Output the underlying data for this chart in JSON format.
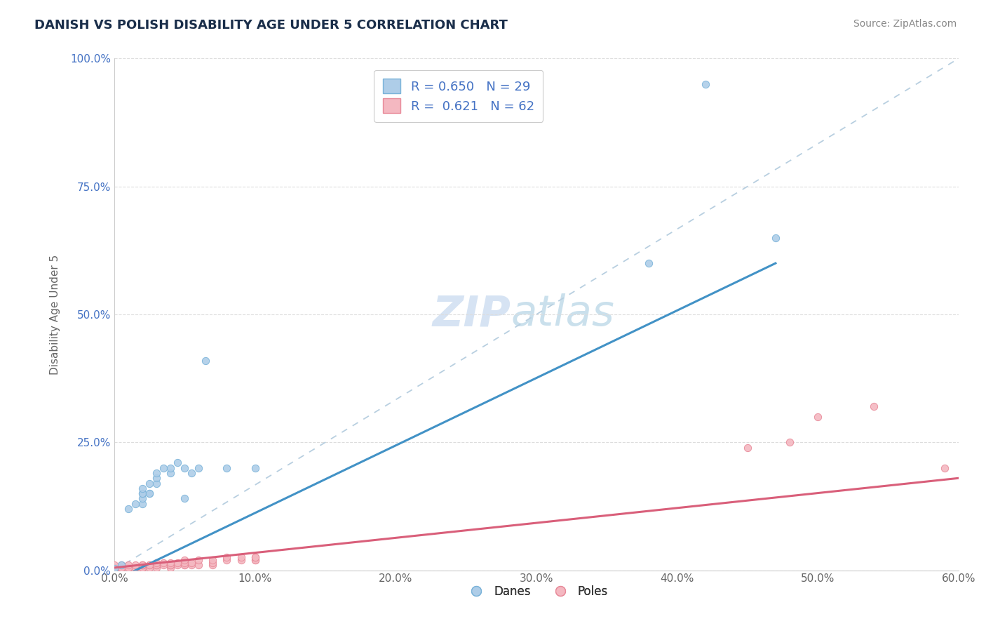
{
  "title": "DANISH VS POLISH DISABILITY AGE UNDER 5 CORRELATION CHART",
  "source": "Source: ZipAtlas.com",
  "ylabel": "Disability Age Under 5",
  "xlabel": "",
  "xlim": [
    0.0,
    0.6
  ],
  "ylim": [
    0.0,
    1.0
  ],
  "yticks": [
    0.0,
    0.25,
    0.5,
    0.75,
    1.0
  ],
  "ytick_labels": [
    "0.0%",
    "25.0%",
    "50.0%",
    "75.0%",
    "100.0%"
  ],
  "xticks": [
    0.0,
    0.1,
    0.2,
    0.3,
    0.4,
    0.5,
    0.6
  ],
  "xtick_labels": [
    "0.0%",
    "10.0%",
    "20.0%",
    "30.0%",
    "40.0%",
    "50.0%",
    "60.0%"
  ],
  "danes_scatter_color": "#aecde8",
  "poles_scatter_color": "#f4b8c1",
  "danes_edge_color": "#7ab3d9",
  "poles_edge_color": "#e88a99",
  "danes_line_color": "#4292c6",
  "poles_line_color": "#d95f7a",
  "diagonal_color": "#b8cfe0",
  "danes_R": 0.65,
  "danes_N": 29,
  "poles_R": 0.621,
  "poles_N": 62,
  "watermark": "ZIPAtlas",
  "danes_x": [
    0.0,
    0.005,
    0.01,
    0.015,
    0.02,
    0.02,
    0.02,
    0.02,
    0.02,
    0.025,
    0.025,
    0.025,
    0.03,
    0.03,
    0.03,
    0.035,
    0.04,
    0.04,
    0.045,
    0.05,
    0.05,
    0.055,
    0.06,
    0.065,
    0.08,
    0.1,
    0.38,
    0.42,
    0.47
  ],
  "danes_y": [
    0.003,
    0.01,
    0.12,
    0.13,
    0.13,
    0.14,
    0.15,
    0.15,
    0.16,
    0.15,
    0.15,
    0.17,
    0.17,
    0.18,
    0.19,
    0.2,
    0.19,
    0.2,
    0.21,
    0.14,
    0.2,
    0.19,
    0.2,
    0.41,
    0.2,
    0.2,
    0.6,
    0.95,
    0.65
  ],
  "poles_x": [
    0.0,
    0.0,
    0.0,
    0.0,
    0.0,
    0.0,
    0.005,
    0.005,
    0.005,
    0.01,
    0.01,
    0.01,
    0.01,
    0.01,
    0.015,
    0.015,
    0.02,
    0.02,
    0.02,
    0.02,
    0.02,
    0.02,
    0.025,
    0.025,
    0.025,
    0.03,
    0.03,
    0.03,
    0.03,
    0.035,
    0.035,
    0.04,
    0.04,
    0.04,
    0.04,
    0.04,
    0.045,
    0.045,
    0.05,
    0.05,
    0.05,
    0.05,
    0.055,
    0.055,
    0.06,
    0.06,
    0.07,
    0.07,
    0.07,
    0.08,
    0.08,
    0.09,
    0.09,
    0.1,
    0.1,
    0.1,
    0.1,
    0.45,
    0.48,
    0.5,
    0.54,
    0.59
  ],
  "poles_y": [
    0.0,
    0.005,
    0.005,
    0.005,
    0.005,
    0.01,
    0.005,
    0.005,
    0.01,
    0.005,
    0.005,
    0.005,
    0.005,
    0.01,
    0.005,
    0.01,
    0.005,
    0.005,
    0.005,
    0.01,
    0.01,
    0.01,
    0.005,
    0.01,
    0.01,
    0.005,
    0.01,
    0.01,
    0.015,
    0.01,
    0.015,
    0.005,
    0.01,
    0.01,
    0.01,
    0.015,
    0.01,
    0.015,
    0.01,
    0.01,
    0.015,
    0.02,
    0.01,
    0.015,
    0.01,
    0.02,
    0.01,
    0.015,
    0.02,
    0.02,
    0.025,
    0.02,
    0.025,
    0.02,
    0.02,
    0.025,
    0.025,
    0.24,
    0.25,
    0.3,
    0.32,
    0.2
  ],
  "danes_line_x0": 0.0,
  "danes_line_y0": -0.02,
  "danes_line_x1": 0.47,
  "danes_line_y1": 0.6,
  "poles_line_x0": 0.0,
  "poles_line_y0": 0.005,
  "poles_line_x1": 0.6,
  "poles_line_y1": 0.18
}
